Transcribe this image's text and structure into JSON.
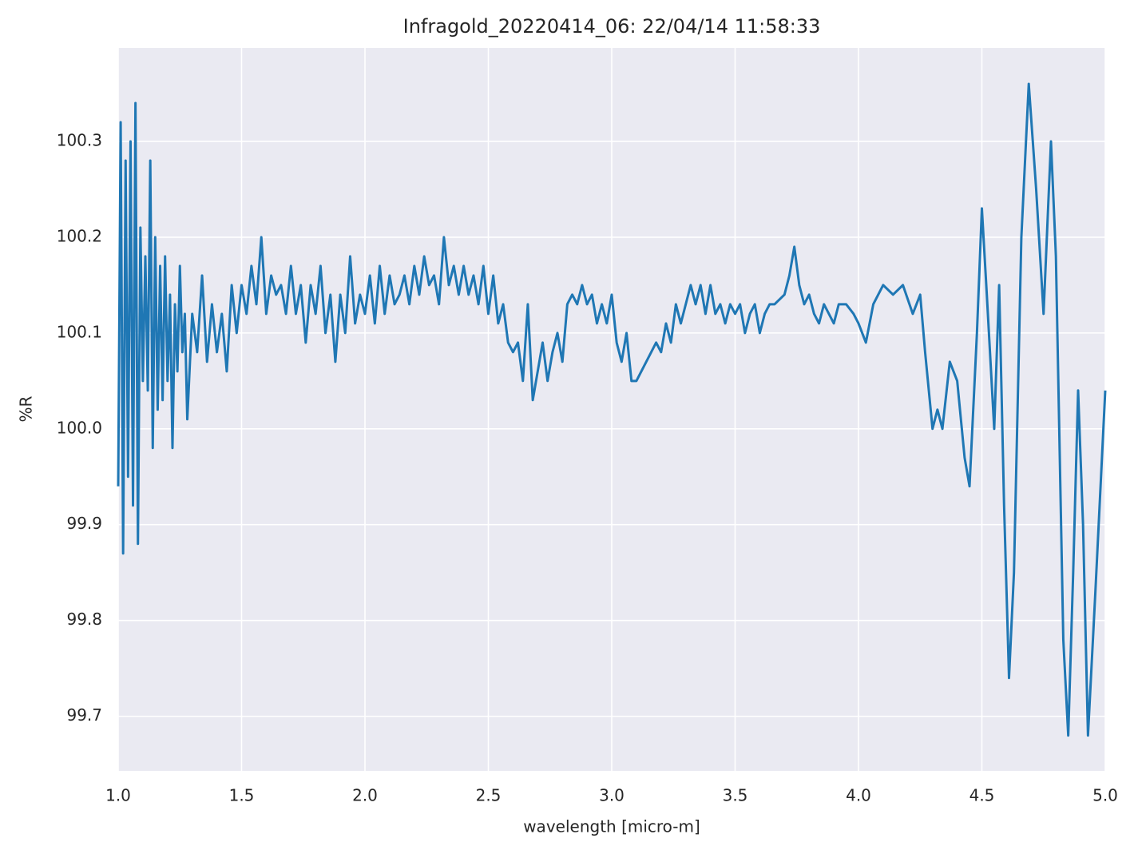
{
  "chart_data": {
    "type": "line",
    "title": "Infragold_20220414_06:  22/04/14 11:58:33",
    "x_label": "wavelength [micro-m]",
    "y_label": "%R",
    "x": [
      1.0,
      1.01,
      1.02,
      1.03,
      1.04,
      1.05,
      1.06,
      1.07,
      1.08,
      1.09,
      1.1,
      1.11,
      1.12,
      1.13,
      1.14,
      1.15,
      1.16,
      1.17,
      1.18,
      1.19,
      1.2,
      1.21,
      1.22,
      1.23,
      1.24,
      1.25,
      1.26,
      1.27,
      1.28,
      1.3,
      1.32,
      1.34,
      1.36,
      1.38,
      1.4,
      1.42,
      1.44,
      1.46,
      1.48,
      1.5,
      1.52,
      1.54,
      1.56,
      1.58,
      1.6,
      1.62,
      1.64,
      1.66,
      1.68,
      1.7,
      1.72,
      1.74,
      1.76,
      1.78,
      1.8,
      1.82,
      1.84,
      1.86,
      1.88,
      1.9,
      1.92,
      1.94,
      1.96,
      1.98,
      2.0,
      2.02,
      2.04,
      2.06,
      2.08,
      2.1,
      2.12,
      2.14,
      2.16,
      2.18,
      2.2,
      2.22,
      2.24,
      2.26,
      2.28,
      2.3,
      2.32,
      2.34,
      2.36,
      2.38,
      2.4,
      2.42,
      2.44,
      2.46,
      2.48,
      2.5,
      2.52,
      2.54,
      2.56,
      2.58,
      2.6,
      2.62,
      2.64,
      2.66,
      2.68,
      2.7,
      2.72,
      2.74,
      2.76,
      2.78,
      2.8,
      2.82,
      2.84,
      2.86,
      2.88,
      2.9,
      2.92,
      2.94,
      2.96,
      2.98,
      3.0,
      3.02,
      3.04,
      3.06,
      3.08,
      3.1,
      3.12,
      3.14,
      3.16,
      3.18,
      3.2,
      3.22,
      3.24,
      3.26,
      3.28,
      3.3,
      3.32,
      3.34,
      3.36,
      3.38,
      3.4,
      3.42,
      3.44,
      3.46,
      3.48,
      3.5,
      3.52,
      3.54,
      3.56,
      3.58,
      3.6,
      3.62,
      3.64,
      3.66,
      3.7,
      3.72,
      3.74,
      3.76,
      3.78,
      3.8,
      3.82,
      3.84,
      3.86,
      3.88,
      3.9,
      3.92,
      3.95,
      3.98,
      4.0,
      4.03,
      4.06,
      4.1,
      4.14,
      4.18,
      4.22,
      4.25,
      4.27,
      4.3,
      4.32,
      4.34,
      4.37,
      4.4,
      4.43,
      4.45,
      4.48,
      4.5,
      4.52,
      4.55,
      4.57,
      4.59,
      4.61,
      4.63,
      4.66,
      4.69,
      4.72,
      4.75,
      4.78,
      4.8,
      4.83,
      4.85,
      4.87,
      4.89,
      4.91,
      4.93,
      4.96,
      5.0
    ],
    "series": [
      {
        "color": "#1f77b4",
        "values": [
          99.94,
          100.32,
          99.87,
          100.28,
          99.95,
          100.3,
          99.92,
          100.34,
          99.88,
          100.21,
          100.05,
          100.18,
          100.04,
          100.28,
          99.98,
          100.2,
          100.02,
          100.17,
          100.03,
          100.18,
          100.05,
          100.14,
          99.98,
          100.13,
          100.06,
          100.17,
          100.08,
          100.12,
          100.01,
          100.12,
          100.08,
          100.16,
          100.07,
          100.13,
          100.08,
          100.12,
          100.06,
          100.15,
          100.1,
          100.15,
          100.12,
          100.17,
          100.13,
          100.2,
          100.12,
          100.16,
          100.14,
          100.15,
          100.12,
          100.17,
          100.12,
          100.15,
          100.09,
          100.15,
          100.12,
          100.17,
          100.1,
          100.14,
          100.07,
          100.14,
          100.1,
          100.18,
          100.11,
          100.14,
          100.12,
          100.16,
          100.11,
          100.17,
          100.12,
          100.16,
          100.13,
          100.14,
          100.16,
          100.13,
          100.17,
          100.14,
          100.18,
          100.15,
          100.16,
          100.13,
          100.2,
          100.15,
          100.17,
          100.14,
          100.17,
          100.14,
          100.16,
          100.13,
          100.17,
          100.12,
          100.16,
          100.11,
          100.13,
          100.09,
          100.08,
          100.09,
          100.05,
          100.13,
          100.03,
          100.06,
          100.09,
          100.05,
          100.08,
          100.1,
          100.07,
          100.13,
          100.14,
          100.13,
          100.15,
          100.13,
          100.14,
          100.11,
          100.13,
          100.11,
          100.14,
          100.09,
          100.07,
          100.1,
          100.05,
          100.05,
          100.06,
          100.07,
          100.08,
          100.09,
          100.08,
          100.11,
          100.09,
          100.13,
          100.11,
          100.13,
          100.15,
          100.13,
          100.15,
          100.12,
          100.15,
          100.12,
          100.13,
          100.11,
          100.13,
          100.12,
          100.13,
          100.1,
          100.12,
          100.13,
          100.1,
          100.12,
          100.13,
          100.13,
          100.14,
          100.16,
          100.19,
          100.15,
          100.13,
          100.14,
          100.12,
          100.11,
          100.13,
          100.12,
          100.11,
          100.13,
          100.13,
          100.12,
          100.11,
          100.09,
          100.13,
          100.15,
          100.14,
          100.15,
          100.12,
          100.14,
          100.08,
          100.0,
          100.02,
          100.0,
          100.07,
          100.05,
          99.97,
          99.94,
          100.1,
          100.23,
          100.14,
          100.0,
          100.15,
          99.92,
          99.74,
          99.85,
          100.2,
          100.36,
          100.25,
          100.12,
          100.3,
          100.18,
          99.78,
          99.68,
          99.85,
          100.04,
          99.9,
          99.68,
          99.83,
          100.04
        ]
      }
    ],
    "xlim": [
      1.0,
      5.0
    ],
    "xticks": [
      {
        "value": 1.0,
        "label": "1.0"
      },
      1.5,
      {
        "value": 2.0,
        "label": "2.0"
      },
      2.5,
      {
        "value": 3.0,
        "label": "3.0"
      },
      3.5,
      {
        "value": 4.0,
        "label": "4.0"
      },
      4.5,
      {
        "value": 5.0,
        "label": "5.0"
      }
    ],
    "ylim": [
      99.643,
      100.3975
    ],
    "yticks": [
      99.7,
      99.8,
      99.9,
      {
        "value": 100.0,
        "label": "100.0"
      },
      100.1,
      100.2,
      100.3
    ],
    "grid": true,
    "background": "#eaeaf2"
  }
}
